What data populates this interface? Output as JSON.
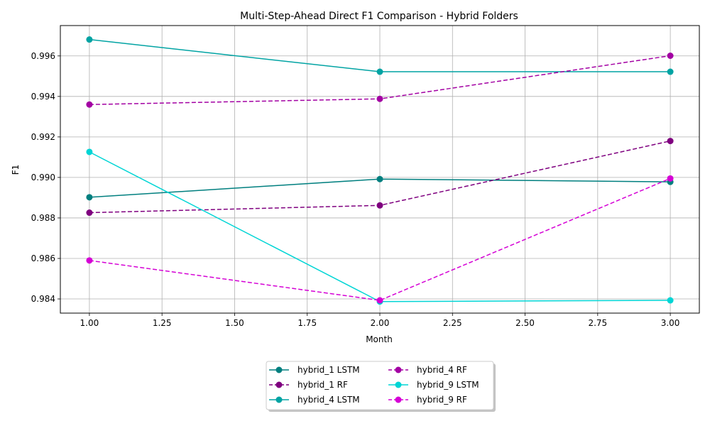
{
  "chart_data": {
    "type": "line",
    "title": "Multi-Step-Ahead Direct F1 Comparison - Hybrid Folders",
    "xlabel": "Month",
    "ylabel": "F1",
    "xlim": [
      0.9,
      3.1
    ],
    "ylim": [
      0.9833,
      0.9975
    ],
    "x": [
      1,
      2,
      3
    ],
    "xticks": [
      1.0,
      1.25,
      1.5,
      1.75,
      2.0,
      2.25,
      2.5,
      2.75,
      3.0
    ],
    "xtick_labels": [
      "1.00",
      "1.25",
      "1.50",
      "1.75",
      "2.00",
      "2.25",
      "2.50",
      "2.75",
      "3.00"
    ],
    "yticks": [
      0.984,
      0.986,
      0.988,
      0.99,
      0.992,
      0.994,
      0.996
    ],
    "ytick_labels": [
      "0.984",
      "0.986",
      "0.988",
      "0.990",
      "0.992",
      "0.994",
      "0.996"
    ],
    "grid": true,
    "legend_position": "bottom-center",
    "series": [
      {
        "name": "hybrid_1 LSTM",
        "values": [
          0.98902,
          0.98992,
          0.98978
        ],
        "color": "#007f7f",
        "dashed": false
      },
      {
        "name": "hybrid_1 RF",
        "values": [
          0.98826,
          0.98862,
          0.9918
        ],
        "color": "#7f007f",
        "dashed": true
      },
      {
        "name": "hybrid_4 LSTM",
        "values": [
          0.99681,
          0.99522,
          0.99522
        ],
        "color": "#00a3a3",
        "dashed": false
      },
      {
        "name": "hybrid_4 RF",
        "values": [
          0.9936,
          0.99388,
          0.99601
        ],
        "color": "#a300a3",
        "dashed": true
      },
      {
        "name": "hybrid_9 LSTM",
        "values": [
          0.99126,
          0.98387,
          0.98393
        ],
        "color": "#00d5d5",
        "dashed": false
      },
      {
        "name": "hybrid_9 RF",
        "values": [
          0.9859,
          0.98393,
          0.98995
        ],
        "color": "#d500d5",
        "dashed": true
      }
    ]
  }
}
